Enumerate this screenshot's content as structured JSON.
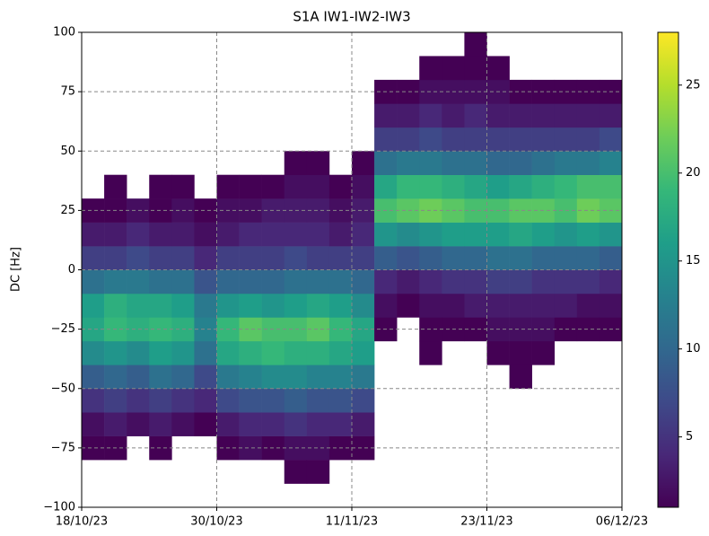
{
  "chart_data": {
    "type": "hist2d",
    "title": "S1A IW1-IW2-IW3",
    "ylabel": "DC [Hz]",
    "xlim": [
      0,
      48
    ],
    "ylim": [
      -100,
      100
    ],
    "xticks": [
      {
        "value": 0,
        "label": "18/10/23"
      },
      {
        "value": 12,
        "label": "30/10/23"
      },
      {
        "value": 24,
        "label": "11/11/23"
      },
      {
        "value": 36,
        "label": "23/11/23"
      },
      {
        "value": 48,
        "label": "06/12/23"
      }
    ],
    "yticks": [
      {
        "value": -100,
        "label": "−100"
      },
      {
        "value": -75,
        "label": "−75"
      },
      {
        "value": -50,
        "label": "−50"
      },
      {
        "value": -25,
        "label": "−25"
      },
      0,
      25,
      50,
      75,
      100
    ],
    "grid": true,
    "xbins": [
      0,
      2,
      4,
      6,
      8,
      10,
      12,
      14,
      16,
      18,
      20,
      22,
      24,
      26,
      28,
      30,
      32,
      34,
      36,
      38,
      40,
      42,
      44,
      46,
      48
    ],
    "ybins": [
      -100,
      -90,
      -80,
      -70,
      -60,
      -50,
      -40,
      -30,
      -20,
      -10,
      0,
      10,
      20,
      30,
      40,
      50,
      60,
      70,
      80,
      90,
      100
    ],
    "counts": [
      [
        0,
        0,
        1,
        2,
        5,
        9,
        14,
        17,
        16,
        11,
        6,
        3,
        1,
        0,
        0,
        0,
        0,
        0,
        0,
        0
      ],
      [
        0,
        0,
        1,
        3,
        6,
        10,
        15,
        19,
        18,
        12,
        6,
        3,
        1,
        1,
        0,
        0,
        0,
        0,
        0,
        0
      ],
      [
        0,
        0,
        0,
        2,
        5,
        9,
        14,
        18,
        17,
        12,
        7,
        4,
        2,
        0,
        0,
        0,
        0,
        0,
        0,
        0
      ],
      [
        0,
        0,
        1,
        3,
        6,
        11,
        16,
        19,
        17,
        11,
        6,
        3,
        1,
        1,
        0,
        0,
        0,
        0,
        0,
        0
      ],
      [
        0,
        0,
        0,
        2,
        5,
        10,
        15,
        18,
        16,
        11,
        6,
        3,
        2,
        1,
        0,
        0,
        0,
        0,
        0,
        0
      ],
      [
        0,
        0,
        0,
        1,
        4,
        7,
        11,
        13,
        12,
        8,
        4,
        2,
        1,
        0,
        0,
        0,
        0,
        0,
        0,
        0
      ],
      [
        0,
        0,
        1,
        3,
        7,
        12,
        17,
        19,
        15,
        10,
        6,
        3,
        2,
        1,
        0,
        0,
        0,
        0,
        0,
        0
      ],
      [
        0,
        0,
        2,
        4,
        8,
        13,
        18,
        21,
        16,
        10,
        6,
        4,
        2,
        1,
        0,
        0,
        0,
        0,
        0,
        0
      ],
      [
        0,
        0,
        1,
        4,
        8,
        14,
        19,
        20,
        15,
        10,
        6,
        4,
        3,
        1,
        0,
        0,
        0,
        0,
        0,
        0
      ],
      [
        0,
        1,
        2,
        5,
        9,
        14,
        18,
        20,
        16,
        11,
        7,
        4,
        3,
        2,
        1,
        0,
        0,
        0,
        0,
        0
      ],
      [
        0,
        1,
        2,
        4,
        8,
        13,
        18,
        21,
        17,
        11,
        6,
        4,
        3,
        2,
        1,
        0,
        0,
        0,
        0,
        0
      ],
      [
        0,
        0,
        1,
        4,
        8,
        13,
        17,
        19,
        16,
        11,
        6,
        3,
        2,
        1,
        0,
        0,
        0,
        0,
        0,
        0
      ],
      [
        0,
        0,
        1,
        3,
        7,
        12,
        16,
        17,
        14,
        10,
        6,
        4,
        3,
        2,
        1,
        0,
        0,
        0,
        0,
        0
      ],
      [
        0,
        0,
        0,
        0,
        0,
        0,
        0,
        1,
        2,
        4,
        9,
        15,
        20,
        17,
        11,
        6,
        3,
        1,
        0,
        0
      ],
      [
        0,
        0,
        0,
        0,
        0,
        0,
        0,
        0,
        1,
        3,
        8,
        14,
        21,
        19,
        12,
        6,
        3,
        1,
        0,
        0
      ],
      [
        0,
        0,
        0,
        0,
        0,
        0,
        1,
        1,
        2,
        4,
        9,
        15,
        22,
        19,
        12,
        7,
        4,
        2,
        1,
        0
      ],
      [
        0,
        0,
        0,
        0,
        0,
        0,
        0,
        1,
        2,
        5,
        10,
        16,
        21,
        18,
        11,
        6,
        3,
        2,
        1,
        0
      ],
      [
        0,
        0,
        0,
        0,
        0,
        0,
        0,
        1,
        3,
        5,
        10,
        16,
        20,
        17,
        11,
        6,
        4,
        2,
        1,
        1
      ],
      [
        0,
        0,
        0,
        0,
        0,
        0,
        1,
        2,
        3,
        6,
        11,
        16,
        20,
        16,
        10,
        6,
        3,
        2,
        1,
        0
      ],
      [
        0,
        0,
        0,
        0,
        0,
        1,
        1,
        2,
        3,
        6,
        11,
        17,
        21,
        17,
        10,
        6,
        3,
        1,
        0,
        0
      ],
      [
        0,
        0,
        0,
        0,
        0,
        0,
        1,
        2,
        3,
        5,
        10,
        16,
        21,
        18,
        11,
        6,
        3,
        1,
        0,
        0
      ],
      [
        0,
        0,
        0,
        0,
        0,
        0,
        0,
        1,
        3,
        5,
        10,
        15,
        20,
        19,
        12,
        6,
        3,
        1,
        0,
        0
      ],
      [
        0,
        0,
        0,
        0,
        0,
        0,
        0,
        1,
        2,
        5,
        10,
        16,
        22,
        20,
        12,
        6,
        3,
        1,
        0,
        0
      ],
      [
        0,
        0,
        0,
        0,
        0,
        0,
        0,
        1,
        2,
        4,
        9,
        15,
        21,
        20,
        13,
        7,
        3,
        1,
        0,
        0
      ]
    ],
    "colormap": "viridis",
    "clim": [
      1,
      28
    ],
    "cticks": [
      5,
      10,
      15,
      20,
      25
    ]
  }
}
